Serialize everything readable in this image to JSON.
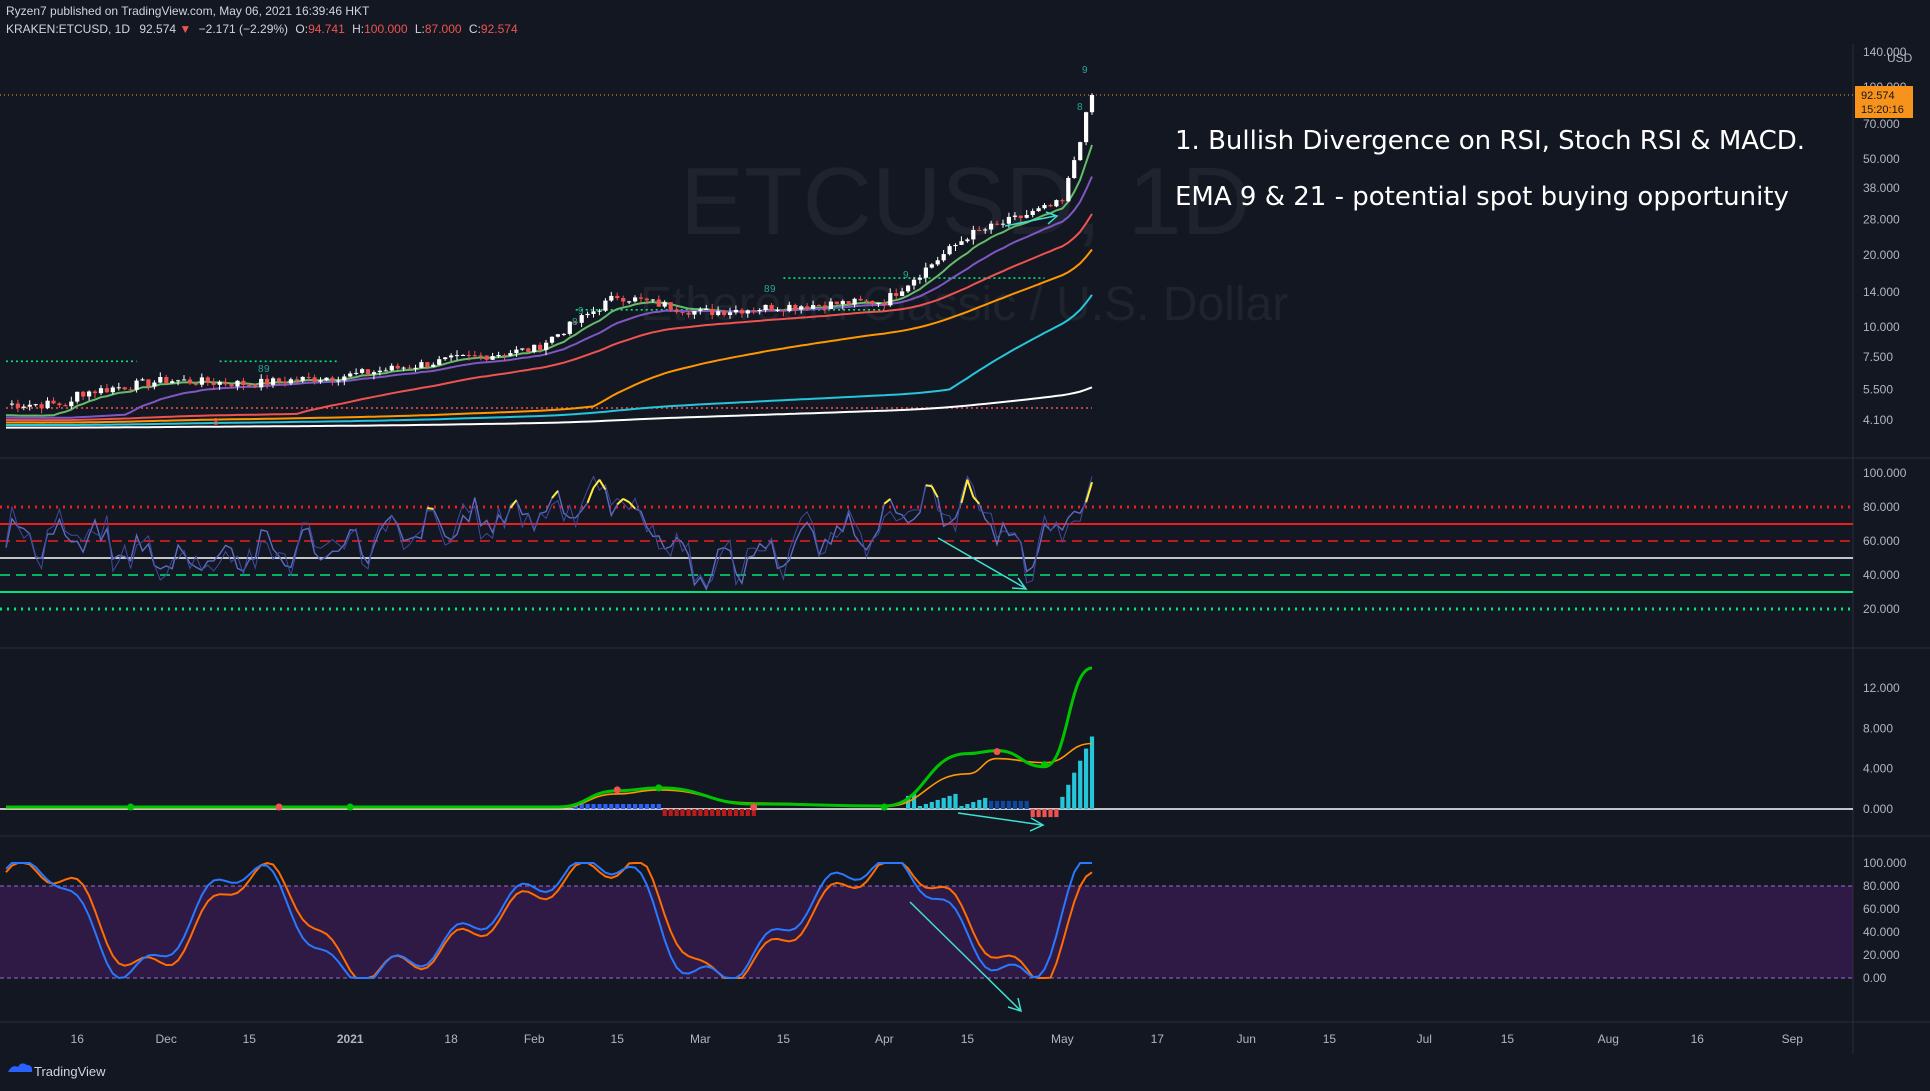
{
  "header": {
    "published": "Ryzen7 published on TradingView.com, May 06, 2021 16:39:46 HKT",
    "symbol": "KRAKEN:ETCUSD, 1D",
    "last": "92.574",
    "change": "−2.171 (−2.29%)",
    "o_label": "O:",
    "o_value": "94.741",
    "h_label": "H:",
    "h_value": "100.000",
    "l_label": "L:",
    "l_value": "87.000",
    "c_label": "C:",
    "c_value": "92.574"
  },
  "watermark": {
    "symbol": "ETCUSD, 1D",
    "name": "Ethereum Classic / U.S. Dollar"
  },
  "annotations": [
    "1. Bullish Divergence on RSI, Stoch RSI & MACD.",
    "EMA 9 & 21 - potential spot buying opportunity"
  ],
  "price_axis": {
    "currency": "USD",
    "ticks": [
      "140.000",
      "100.000",
      "70.000",
      "50.000",
      "38.000",
      "28.000",
      "20.000",
      "14.000",
      "10.000",
      "7.500",
      "5.500",
      "4.100"
    ],
    "last_price_label": "92.574",
    "countdown_label": "15:20:16"
  },
  "time_axis": [
    "16",
    "Dec",
    "15",
    "2021",
    "18",
    "Feb",
    "15",
    "Mar",
    "15",
    "Apr",
    "15",
    "May",
    "17",
    "Jun",
    "15",
    "Jul",
    "15",
    "Aug",
    "16",
    "Sep"
  ],
  "branding": {
    "logo_text": "TradingView"
  },
  "colors": {
    "background": "#131722",
    "up": "#ffffff",
    "down": "#ef5350",
    "ema9": "#66bb6a",
    "ema21": "#7e57c2",
    "ema50": "#ef5350",
    "ema100": "#ff9800",
    "ema200": "#26c6da",
    "ema_long": "#ffffff",
    "rsi": "#5c6bc0",
    "macd": "#00c400",
    "signal": "#ff9800",
    "stoch_k": "#2962ff",
    "stoch_d": "#ff6d00",
    "divergence_arrow": "#40e0d0",
    "stoch_band": "#7b1fa2"
  },
  "chart_data": [
    {
      "type": "candlestick",
      "title": "ETCUSD, 1D",
      "x": [
        "2020-11-04",
        "2021-05-06"
      ],
      "y_scale": "log",
      "ylim": [
        3.5,
        140
      ],
      "last_close": 92.574,
      "ema_series": [
        "EMA 9",
        "EMA 21",
        "EMA 50",
        "EMA 100",
        "EMA 200",
        "EMA long"
      ],
      "x_key_dates": [
        "2020-11-16",
        "2020-12-01",
        "2020-12-15",
        "2021-01-01",
        "2021-01-18",
        "2021-02-01",
        "2021-02-15",
        "2021-03-01",
        "2021-03-15",
        "2021-04-01",
        "2021-04-15",
        "2021-05-01",
        "2021-05-06"
      ],
      "close_at_key_dates": [
        5.3,
        6.0,
        5.8,
        6.3,
        7.3,
        8.1,
        13.5,
        11.5,
        12.2,
        12.8,
        24.0,
        33.0,
        92.574
      ],
      "horizontal_levels": [
        16.0,
        11.8,
        7.2,
        4.6
      ]
    },
    {
      "type": "line",
      "title": "RSI",
      "ylim": [
        10,
        100
      ],
      "ticks": [
        "100.000",
        "80.000",
        "60.000",
        "40.000",
        "20.000"
      ],
      "guide_levels": [
        80,
        70,
        60,
        50,
        40,
        30,
        20
      ],
      "x_key_dates": [
        "2020-11-16",
        "2020-12-01",
        "2021-01-01",
        "2021-02-15",
        "2021-03-01",
        "2021-04-15",
        "2021-04-25",
        "2021-05-06"
      ],
      "values": [
        62,
        48,
        58,
        87,
        42,
        85,
        50,
        90
      ]
    },
    {
      "type": "line",
      "title": "MACD",
      "ylim": [
        -2,
        15
      ],
      "ticks": [
        "12.000",
        "8.000",
        "4.000",
        "0.000"
      ],
      "series": [
        {
          "x": [
            "2021-02-15",
            "2021-02-22",
            "2021-04-15",
            "2021-04-20",
            "2021-04-28",
            "2021-05-06"
          ],
          "values": [
            1.8,
            2.1,
            5.5,
            5.8,
            4.2,
            14.0
          ]
        },
        {
          "x": [
            "2021-02-15",
            "2021-02-22",
            "2021-04-15",
            "2021-04-20",
            "2021-04-28",
            "2021-05-06"
          ],
          "values": [
            1.5,
            1.9,
            3.5,
            5.0,
            4.6,
            6.5
          ]
        }
      ],
      "histogram_last": 7.0
    },
    {
      "type": "line",
      "title": "Stoch RSI",
      "ylim": [
        -10,
        105
      ],
      "ticks": [
        "100.000",
        "80.000",
        "60.000",
        "40.000",
        "20.000",
        "0.00"
      ],
      "band": [
        20,
        80
      ],
      "series": [
        {
          "x": [
            "2020-11-10",
            "2020-11-25",
            "2020-12-15",
            "2021-01-01",
            "2021-02-15",
            "2021-03-01",
            "2021-04-01",
            "2021-04-25",
            "2021-05-06"
          ],
          "values": [
            95,
            5,
            95,
            3,
            100,
            0,
            100,
            0,
            100
          ]
        },
        {
          "x": [
            "2020-11-10",
            "2020-11-25",
            "2020-12-15",
            "2021-01-01",
            "2021-02-15",
            "2021-03-01",
            "2021-04-01",
            "2021-04-25",
            "2021-05-06"
          ],
          "values": [
            92,
            8,
            92,
            6,
            98,
            2,
            98,
            2,
            98
          ]
        }
      ]
    }
  ]
}
